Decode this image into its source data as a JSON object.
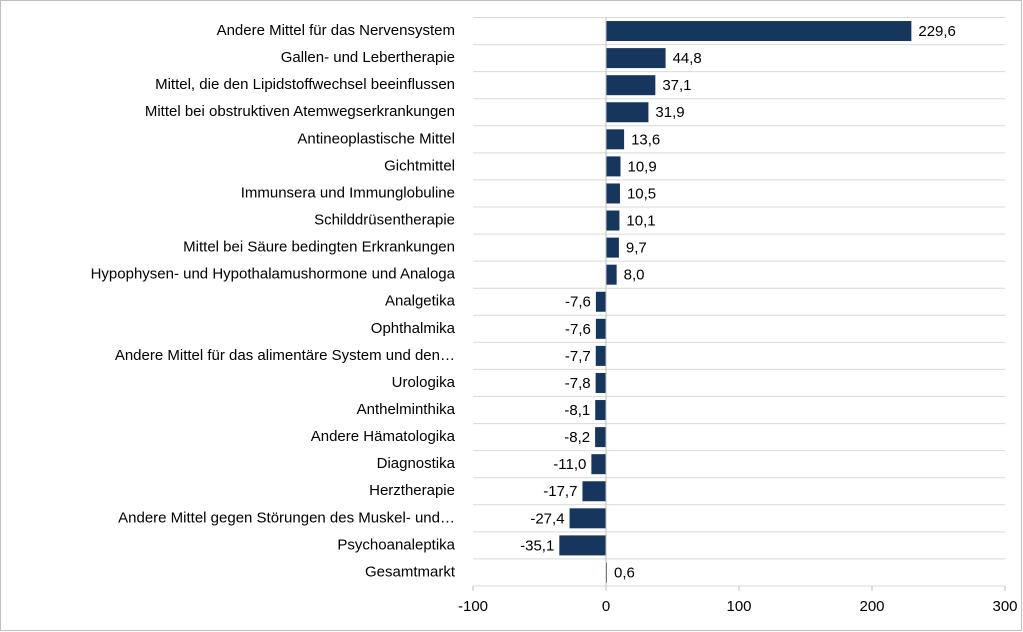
{
  "chart_data": {
    "type": "bar",
    "orientation": "horizontal",
    "categories": [
      "Andere Mittel für das Nervensystem",
      "Gallen- und Lebertherapie",
      "Mittel, die den Lipidstoffwechsel beeinflussen",
      "Mittel bei obstruktiven Atemwegserkrankungen",
      "Antineoplastische Mittel",
      "Gichtmittel",
      "Immunsera und Immunglobuline",
      "Schilddrüsentherapie",
      "Mittel bei Säure bedingten Erkrankungen",
      "Hypophysen- und Hypothalamushormone und Analoga",
      "Analgetika",
      "Ophthalmika",
      "Andere Mittel für das alimentäre System und den…",
      "Urologika",
      "Anthelminthika",
      "Andere Hämatologika",
      "Diagnostika",
      "Herztherapie",
      "Andere Mittel gegen Störungen des Muskel- und…",
      "Psychoanaleptika",
      "Gesamtmarkt"
    ],
    "values": [
      229.6,
      44.8,
      37.1,
      31.9,
      13.6,
      10.9,
      10.5,
      10.1,
      9.7,
      8.0,
      -7.6,
      -7.6,
      -7.7,
      -7.8,
      -8.1,
      -8.2,
      -11.0,
      -17.7,
      -27.4,
      -35.1,
      0.6
    ],
    "value_labels": [
      "229,6",
      "44,8",
      "37,1",
      "31,9",
      "13,6",
      "10,9",
      "10,5",
      "10,1",
      "9,7",
      "8,0",
      "-7,6",
      "-7,6",
      "-7,7",
      "-7,8",
      "-8,1",
      "-8,2",
      "-11,0",
      "-17,7",
      "-27,4",
      "-35,1",
      "0,6"
    ],
    "color": "#17365d",
    "xlim": [
      -100,
      300
    ],
    "xticks": [
      -100,
      0,
      100,
      200,
      300
    ],
    "grid": true
  }
}
